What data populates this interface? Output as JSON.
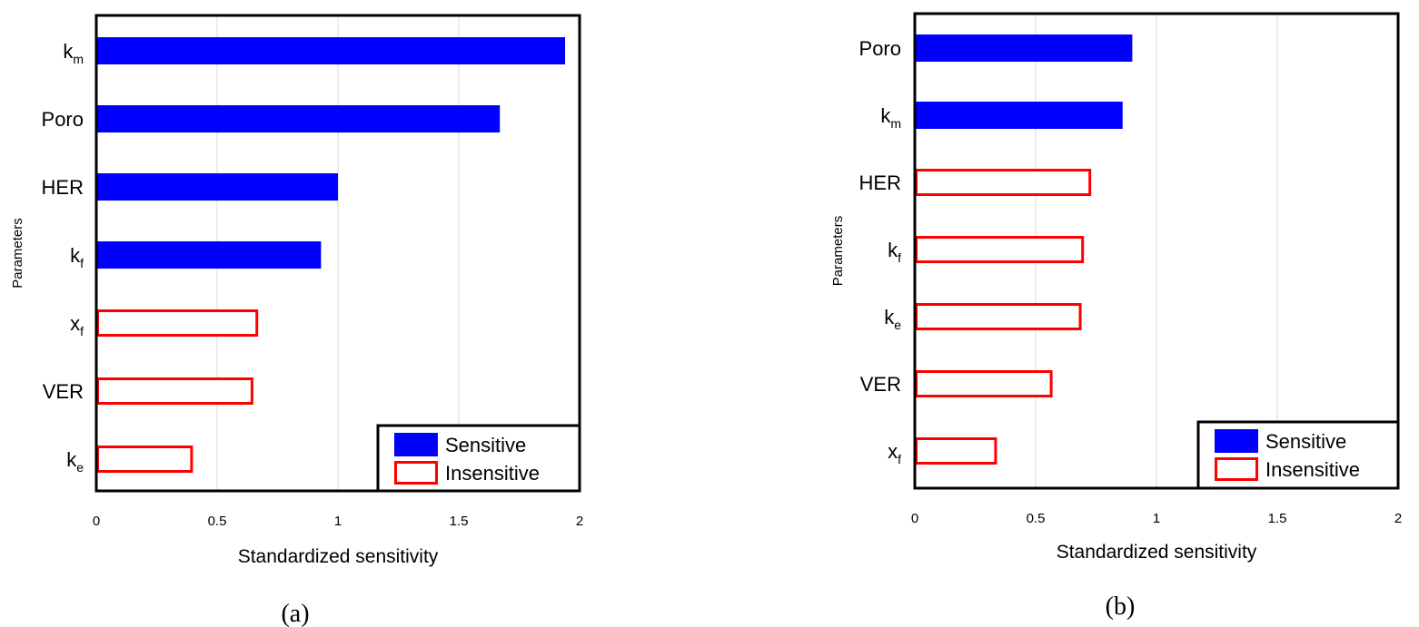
{
  "colors": {
    "sensitive": "#0000ff",
    "insensitive_stroke": "#ff0000",
    "grid": "#d9d9d9",
    "frame": "#000000"
  },
  "chart_data": [
    {
      "type": "bar",
      "orientation": "horizontal",
      "panel_label": "(a)",
      "xlabel": "Standardized sensitivity",
      "ylabel": "Parameters",
      "xlim": [
        0,
        2
      ],
      "xticks": [
        "0",
        "0.5",
        "1",
        "1.5",
        "2"
      ],
      "grid": "vertical",
      "legend_position": "bottom-right",
      "legend": [
        {
          "label": "Sensitive",
          "style": "sensitive"
        },
        {
          "label": "Insensitive",
          "style": "insensitive"
        }
      ],
      "bars": [
        {
          "base": "k",
          "sub": "m",
          "value": 1.94,
          "class": "sensitive"
        },
        {
          "base": "Poro",
          "sub": "",
          "value": 1.67,
          "class": "sensitive"
        },
        {
          "base": "HER",
          "sub": "",
          "value": 1.0,
          "class": "sensitive"
        },
        {
          "base": "k",
          "sub": "f",
          "value": 0.93,
          "class": "sensitive"
        },
        {
          "base": "x",
          "sub": "f",
          "value": 0.67,
          "class": "insensitive"
        },
        {
          "base": "VER",
          "sub": "",
          "value": 0.65,
          "class": "insensitive"
        },
        {
          "base": "k",
          "sub": "e",
          "value": 0.4,
          "class": "insensitive"
        }
      ]
    },
    {
      "type": "bar",
      "orientation": "horizontal",
      "panel_label": "(b)",
      "xlabel": "Standardized sensitivity",
      "ylabel": "Parameters",
      "xlim": [
        0,
        2
      ],
      "xticks": [
        "0",
        "0.5",
        "1",
        "1.5",
        "2"
      ],
      "grid": "vertical",
      "legend_position": "bottom-right",
      "legend": [
        {
          "label": "Sensitive",
          "style": "sensitive"
        },
        {
          "label": "Insensitive",
          "style": "insensitive"
        }
      ],
      "bars": [
        {
          "base": "Poro",
          "sub": "",
          "value": 0.9,
          "class": "sensitive"
        },
        {
          "base": "k",
          "sub": "m",
          "value": 0.86,
          "class": "sensitive"
        },
        {
          "base": "HER",
          "sub": "",
          "value": 0.73,
          "class": "insensitive"
        },
        {
          "base": "k",
          "sub": "f",
          "value": 0.7,
          "class": "insensitive"
        },
        {
          "base": "k",
          "sub": "e",
          "value": 0.69,
          "class": "insensitive"
        },
        {
          "base": "VER",
          "sub": "",
          "value": 0.57,
          "class": "insensitive"
        },
        {
          "base": "x",
          "sub": "f",
          "value": 0.34,
          "class": "insensitive"
        }
      ]
    }
  ]
}
